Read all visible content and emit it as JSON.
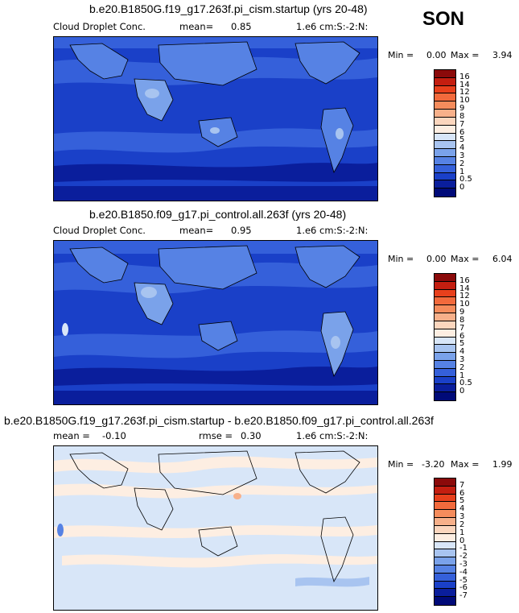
{
  "season": "SON",
  "panels": [
    {
      "title": "b.e20.B1850G.f19_g17.263f.pi_cism.startup (yrs 20-48)",
      "variable": "Cloud Droplet Conc.",
      "stat1": "mean=",
      "stat1_value": "0.85",
      "units": "1.e6 cm:S:-2:N:",
      "min_label": "Min =",
      "min_value": "0.00",
      "max_label": "Max =",
      "max_value": "3.94",
      "colorbar": {
        "levels": [
          "16",
          "14",
          "12",
          "10",
          "9",
          "8",
          "7",
          "6",
          "5",
          "4",
          "3",
          "2",
          "1",
          "0.5",
          "0"
        ],
        "colors": [
          "#8b0a0a",
          "#c41e10",
          "#e8401c",
          "#f26a3c",
          "#f58c5c",
          "#f7b08a",
          "#fbd6be",
          "#fdeee2",
          "#d8e6f8",
          "#a8c4f0",
          "#7aa2ea",
          "#5682e4",
          "#3560da",
          "#1a40c8",
          "#0a1e9c",
          "#000a78"
        ]
      }
    },
    {
      "title": "b.e20.B1850.f09_g17.pi_control.all.263f (yrs 20-48)",
      "variable": "Cloud Droplet Conc.",
      "stat1": "mean=",
      "stat1_value": "0.95",
      "units": "1.e6 cm:S:-2:N:",
      "min_label": "Min =",
      "min_value": "0.00",
      "max_label": "Max =",
      "max_value": "6.04",
      "colorbar": {
        "levels": [
          "16",
          "14",
          "12",
          "10",
          "9",
          "8",
          "7",
          "6",
          "5",
          "4",
          "3",
          "2",
          "1",
          "0.5",
          "0"
        ],
        "colors": [
          "#8b0a0a",
          "#c41e10",
          "#e8401c",
          "#f26a3c",
          "#f58c5c",
          "#f7b08a",
          "#fbd6be",
          "#fdeee2",
          "#d8e6f8",
          "#a8c4f0",
          "#7aa2ea",
          "#5682e4",
          "#3560da",
          "#1a40c8",
          "#0a1e9c",
          "#000a78"
        ]
      }
    },
    {
      "title": "b.e20.B1850G.f19_g17.263f.pi_cism.startup - b.e20.B1850.f09_g17.pi_control.all.263f",
      "stat1": "mean =",
      "stat1_value": "-0.10",
      "stat2": "rmse =",
      "stat2_value": "0.30",
      "units": "1.e6 cm:S:-2:N:",
      "min_label": "Min =",
      "min_value": "-3.20",
      "max_label": "Max =",
      "max_value": "1.99",
      "colorbar": {
        "levels": [
          "7",
          "6",
          "5",
          "4",
          "3",
          "2",
          "1",
          "0",
          "-1",
          "-2",
          "-3",
          "-4",
          "-5",
          "-6",
          "-7"
        ],
        "colors": [
          "#8b0a0a",
          "#c41e10",
          "#e8401c",
          "#f26a3c",
          "#f58c5c",
          "#f7b08a",
          "#fbd6be",
          "#fdeee2",
          "#d8e6f8",
          "#a8c4f0",
          "#7aa2ea",
          "#5682e4",
          "#3560da",
          "#1a40c8",
          "#0a1e9c",
          "#000a78"
        ]
      }
    }
  ]
}
